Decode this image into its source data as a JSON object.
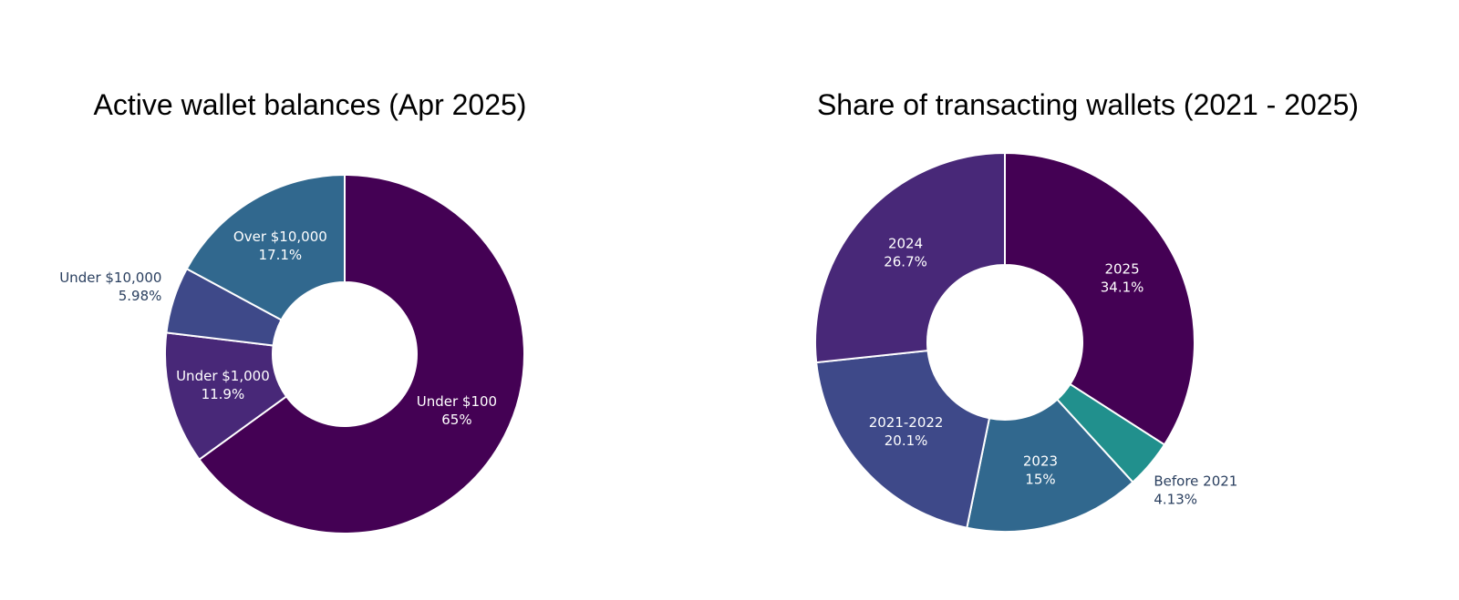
{
  "chart_data": [
    {
      "type": "pie",
      "title": "Active wallet balances (Apr 2025)",
      "categories": [
        "Under $100",
        "Under $1,000",
        "Under $10,000",
        "Over $10,000"
      ],
      "values": [
        65,
        11.9,
        5.98,
        17.1
      ],
      "value_labels": [
        "65%",
        "11.9%",
        "5.98%",
        "17.1%"
      ],
      "colors": [
        "#440154",
        "#482878",
        "#3e4989",
        "#31688e"
      ]
    },
    {
      "type": "pie",
      "title": "Share of transacting wallets (2021 - 2025)",
      "categories": [
        "2025",
        "Before 2021",
        "2023",
        "2021-2022",
        "2024"
      ],
      "values": [
        34.1,
        4.13,
        15,
        20.1,
        26.7
      ],
      "value_labels": [
        "34.1%",
        "4.13%",
        "15%",
        "20.1%",
        "26.7%"
      ],
      "colors": [
        "#440154",
        "#21908d",
        "#31688e",
        "#3e4989",
        "#482878"
      ]
    }
  ]
}
